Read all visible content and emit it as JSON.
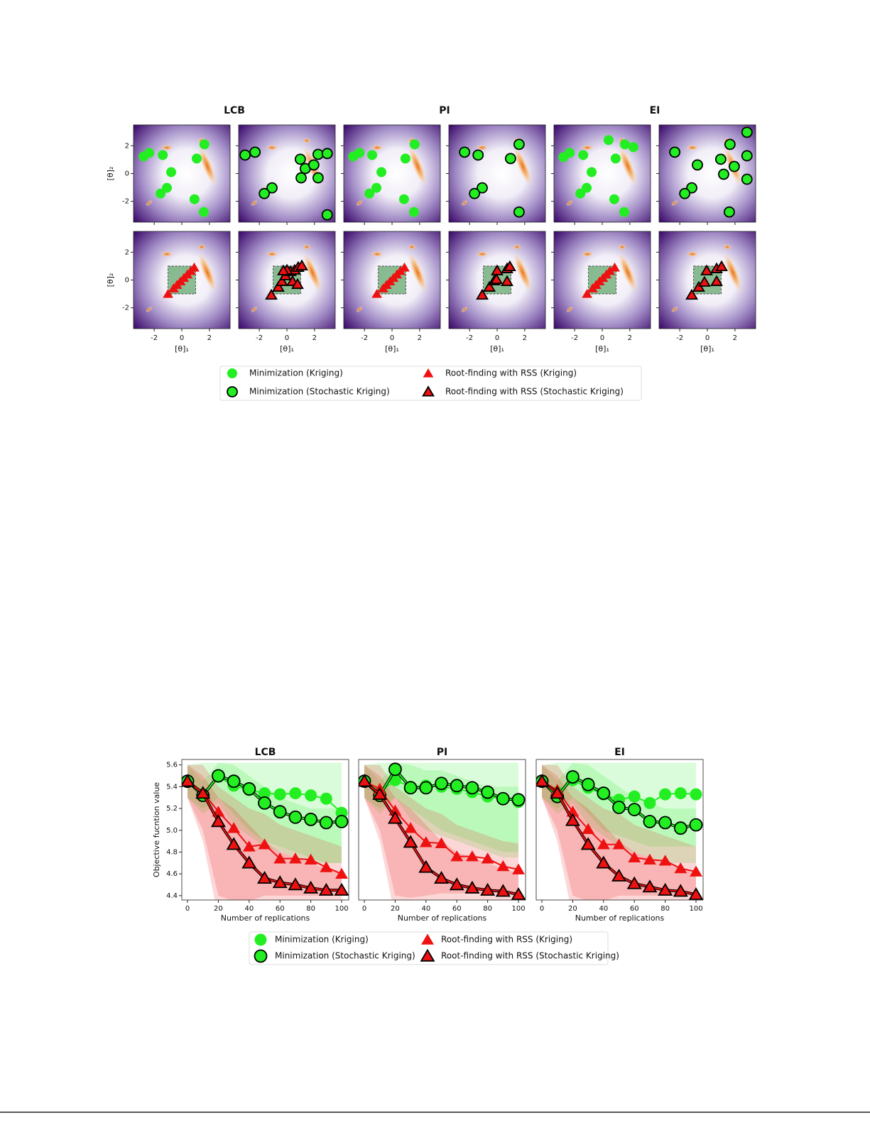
{
  "chart_data": [
    {
      "type": "scatter",
      "titles": [
        "LCB",
        "PI",
        "EI"
      ],
      "xlabel": "[θ]₁",
      "ylabel": "[θ]₂",
      "xlim": [
        -3.5,
        3.5
      ],
      "ylim": [
        -3.5,
        3.5
      ],
      "xticks": [
        -2,
        0,
        2
      ],
      "yticks": [
        -2,
        0,
        2
      ],
      "region": {
        "x": [
          -1,
          1
        ],
        "y": [
          -1,
          1
        ],
        "color": "#2e8b3a"
      },
      "legend": "lower center",
      "series": [
        {
          "name": "Minimization (Kriging)",
          "color": "#22ee22",
          "marker": "circle",
          "x": [
            [
              -2.77,
              -2.36,
              -1.38,
              -0.77,
              -1.08,
              -1.54,
              1.64,
              1.08,
              0.92,
              1.59
            ],
            [
              -2.82,
              -2.36,
              -1.44,
              -0.77,
              -1.13,
              -1.64,
              1.64,
              0.97,
              0.87,
              1.59
            ],
            [
              -2.82,
              -2.36,
              -1.38,
              -0.77,
              -1.13,
              -1.59,
              0.46,
              1.64,
              2.26,
              0.97,
              0.87,
              1.59
            ]
          ],
          "y": [
            [
              1.23,
              1.49,
              1.33,
              0.1,
              -1.03,
              -1.44,
              2.1,
              1.08,
              -1.85,
              -2.77
            ],
            [
              1.23,
              1.49,
              1.33,
              0.1,
              -1.03,
              -1.44,
              2.1,
              1.08,
              -1.85,
              -2.77
            ],
            [
              1.18,
              1.49,
              1.33,
              0.1,
              -1.03,
              -1.44,
              2.41,
              2.1,
              1.9,
              1.08,
              -1.85,
              -2.77
            ]
          ]
        },
        {
          "name": "Minimization (Stochastic Kriging)",
          "color": "#22ee22",
          "edgecolor": "#000000",
          "marker": "circle",
          "x": [
            [
              -3.03,
              -2.31,
              0.97,
              1.33,
              1.95,
              2.26,
              2.92,
              1.03,
              2.26,
              -1.08,
              -1.64,
              2.92
            ],
            [
              -2.36,
              -1.38,
              0.97,
              1.59,
              -1.08,
              -1.64,
              1.59
            ],
            [
              -2.36,
              -0.72,
              0.97,
              1.64,
              1.95,
              1.18,
              2.87,
              2.87,
              2.87,
              -1.13,
              -1.64,
              1.59
            ]
          ],
          "y": [
            [
              1.33,
              1.54,
              1.03,
              0.36,
              0.62,
              1.38,
              1.44,
              -0.31,
              -0.31,
              -1.03,
              -1.44,
              -2.97
            ],
            [
              1.54,
              1.33,
              1.08,
              2.1,
              -1.03,
              -1.44,
              -2.77
            ],
            [
              1.54,
              0.62,
              1.03,
              2.1,
              0.51,
              -0.05,
              2.97,
              1.28,
              -0.41,
              -1.03,
              -1.44,
              -2.77
            ]
          ]
        },
        {
          "name": "Root-finding with RSS (Kriging)",
          "color": "#ee1111",
          "marker": "triangle",
          "x": [
            [
              -1.0,
              -0.6,
              -0.35,
              -0.1,
              0.15,
              0.4,
              0.65,
              0.9
            ],
            [
              -1.1,
              -0.65,
              -0.4,
              -0.15,
              0.1,
              0.35,
              0.6,
              0.9
            ],
            [
              -1.1,
              -0.7,
              -0.45,
              -0.2,
              0.05,
              0.3,
              0.55,
              0.9
            ]
          ],
          "y": [
            [
              -1.0,
              -0.6,
              -0.35,
              -0.1,
              0.15,
              0.4,
              0.65,
              0.9
            ],
            [
              -1.0,
              -0.6,
              -0.35,
              -0.1,
              0.15,
              0.4,
              0.65,
              0.9
            ],
            [
              -1.0,
              -0.6,
              -0.35,
              -0.1,
              0.15,
              0.4,
              0.65,
              0.9
            ]
          ]
        },
        {
          "name": "Root-finding with RSS (Stochastic Kriging)",
          "color": "#ee1111",
          "edgecolor": "#000000",
          "marker": "triangle",
          "x": [
            [
              -1.13,
              -0.62,
              -0.36,
              -0.1,
              0.26,
              0.56,
              0.82,
              1.08,
              0.41,
              0.77,
              0,
              -0.26
            ],
            [
              -1.08,
              -0.56,
              -0.21,
              0,
              0.72,
              0.92,
              -0.05,
              0.72
            ],
            [
              -1.13,
              -0.62,
              -0.21,
              -0.05,
              0.67,
              1.03,
              0.67
            ]
          ],
          "y": [
            [
              -1.08,
              -0.51,
              -0.1,
              0.31,
              0.62,
              0.72,
              0.92,
              1.03,
              -0.1,
              -0.31,
              0.72,
              0.67
            ],
            [
              -1.08,
              -0.51,
              -0.05,
              0.67,
              0.82,
              0.97,
              0.05,
              -0.1
            ],
            [
              -1.08,
              -0.51,
              -0.15,
              0.67,
              0.82,
              0.97,
              -0.1
            ]
          ]
        }
      ]
    },
    {
      "type": "line",
      "title": "LCB",
      "xlabel": "Number of replications",
      "ylabel": "Objective fucntion value",
      "x": [
        0,
        10,
        20,
        30,
        40,
        50,
        60,
        70,
        80,
        90,
        100
      ],
      "xlim": [
        -3.7,
        104.6
      ],
      "ylim": [
        4.36,
        5.65
      ],
      "xticks": [
        0,
        20,
        40,
        60,
        80,
        100
      ],
      "yticks": [
        4.4,
        4.6,
        4.8,
        {
          "value": 5,
          "label": "5.0"
        },
        5.2,
        5.4,
        5.6
      ],
      "legend": "lower center",
      "series": [
        {
          "name": "Minimization (Kriging)",
          "color": "#22ee22",
          "marker": "circle",
          "values": [
            5.45,
            5.33,
            5.49,
            5.41,
            5.37,
            5.34,
            5.33,
            5.34,
            5.32,
            5.29,
            5.16
          ],
          "lower": [
            5.3,
            5.2,
            5.3,
            5.15,
            5.0,
            4.9,
            4.85,
            4.8,
            4.75,
            4.7,
            4.7
          ],
          "upper": [
            5.6,
            5.62,
            5.62,
            5.62,
            5.62,
            5.62,
            5.62,
            5.62,
            5.62,
            5.62,
            5.62
          ]
        },
        {
          "name": "Minimization (Stochastic Kriging)",
          "color": "#22ee22",
          "edgecolor": "#000000",
          "marker": "circle",
          "values": [
            5.45,
            5.32,
            5.5,
            5.45,
            5.38,
            5.25,
            5.17,
            5.12,
            5.1,
            5.07,
            5.08
          ],
          "lower": [
            5.3,
            5.15,
            5.25,
            5.05,
            4.95,
            4.85,
            4.8,
            4.75,
            4.7,
            4.7,
            4.7
          ],
          "upper": [
            5.6,
            5.45,
            5.62,
            5.6,
            5.5,
            5.4,
            5.3,
            5.25,
            5.2,
            5.2,
            5.2
          ]
        },
        {
          "name": "Root-finding with RSS (Kriging)",
          "color": "#ee1111",
          "marker": "triangle",
          "values": [
            5.45,
            5.35,
            5.17,
            5.02,
            4.85,
            4.87,
            4.74,
            4.74,
            4.73,
            4.66,
            4.6
          ],
          "lower": [
            5.3,
            5.0,
            4.4,
            4.35,
            4.35,
            4.4,
            4.4,
            4.4,
            4.4,
            4.4,
            4.4
          ],
          "upper": [
            5.6,
            5.6,
            5.4,
            5.3,
            5.2,
            5.15,
            5.05,
            5.0,
            4.95,
            4.9,
            4.85
          ]
        },
        {
          "name": "Root-finding with RSS (Stochastic Kriging)",
          "color": "#ee1111",
          "edgecolor": "#000000",
          "marker": "triangle",
          "values": [
            5.45,
            5.34,
            5.08,
            4.87,
            4.7,
            4.56,
            4.52,
            4.5,
            4.47,
            4.45,
            4.45
          ],
          "lower": [
            5.3,
            4.9,
            4.2,
            4.2,
            4.3,
            4.35,
            4.35,
            4.35,
            4.35,
            4.35,
            4.35
          ],
          "upper": [
            5.6,
            5.5,
            5.3,
            5.2,
            5.05,
            4.9,
            4.8,
            4.75,
            4.7,
            4.65,
            4.6
          ]
        }
      ]
    },
    {
      "type": "line",
      "title": "PI",
      "xlabel": "Number of replications",
      "x": [
        0,
        10,
        20,
        30,
        40,
        50,
        60,
        70,
        80,
        90,
        100
      ],
      "xlim": [
        -3.7,
        104.6
      ],
      "ylim": [
        4.36,
        5.65
      ],
      "xticks": [
        0,
        20,
        40,
        60,
        80,
        100
      ],
      "series": [
        {
          "name": "Minimization (Kriging)",
          "color": "#22ee22",
          "marker": "circle",
          "values": [
            5.45,
            5.35,
            5.46,
            5.4,
            5.41,
            5.4,
            5.38,
            5.35,
            5.31,
            5.29,
            5.26
          ],
          "lower": [
            5.3,
            5.2,
            5.3,
            5.2,
            5.1,
            5.0,
            4.95,
            4.9,
            4.85,
            4.8,
            4.8
          ],
          "upper": [
            5.6,
            5.62,
            5.62,
            5.62,
            5.62,
            5.62,
            5.62,
            5.62,
            5.62,
            5.62,
            5.62
          ]
        },
        {
          "name": "Minimization (Stochastic Kriging)",
          "color": "#22ee22",
          "edgecolor": "#000000",
          "marker": "circle",
          "values": [
            5.45,
            5.32,
            5.56,
            5.39,
            5.39,
            5.43,
            5.41,
            5.39,
            5.35,
            5.29,
            5.28
          ],
          "lower": [
            5.3,
            5.15,
            5.3,
            5.1,
            5.0,
            4.95,
            4.9,
            4.85,
            4.8,
            4.75,
            4.75
          ],
          "upper": [
            5.6,
            5.45,
            5.62,
            5.6,
            5.55,
            5.55,
            5.5,
            5.45,
            5.4,
            5.4,
            5.4
          ]
        },
        {
          "name": "Root-finding with RSS (Kriging)",
          "color": "#ee1111",
          "marker": "triangle",
          "values": [
            5.45,
            5.38,
            5.18,
            5.02,
            4.89,
            4.88,
            4.76,
            4.76,
            4.74,
            4.67,
            4.64
          ],
          "lower": [
            5.3,
            5.0,
            4.4,
            4.38,
            4.4,
            4.42,
            4.42,
            4.42,
            4.42,
            4.42,
            4.42
          ],
          "upper": [
            5.6,
            5.6,
            5.4,
            5.3,
            5.2,
            5.15,
            5.05,
            5.0,
            4.95,
            4.9,
            4.88
          ]
        },
        {
          "name": "Root-finding with RSS (Stochastic Kriging)",
          "color": "#ee1111",
          "edgecolor": "#000000",
          "marker": "triangle",
          "values": [
            5.45,
            5.33,
            5.11,
            4.89,
            4.66,
            4.56,
            4.5,
            4.47,
            4.45,
            4.44,
            4.41
          ],
          "lower": [
            5.3,
            4.9,
            4.2,
            4.2,
            4.3,
            4.35,
            4.35,
            4.35,
            4.35,
            4.35,
            4.35
          ],
          "upper": [
            5.6,
            5.5,
            5.3,
            5.2,
            5.05,
            4.9,
            4.8,
            4.75,
            4.7,
            4.65,
            4.6
          ]
        }
      ]
    },
    {
      "type": "line",
      "title": "EI",
      "xlabel": "Number of replications",
      "x": [
        0,
        10,
        20,
        30,
        40,
        50,
        60,
        70,
        80,
        90,
        100
      ],
      "xlim": [
        -3.7,
        104.6
      ],
      "ylim": [
        4.36,
        5.65
      ],
      "xticks": [
        0,
        20,
        40,
        60,
        80,
        100
      ],
      "series": [
        {
          "name": "Minimization (Kriging)",
          "color": "#22ee22",
          "marker": "circle",
          "values": [
            5.45,
            5.35,
            5.46,
            5.39,
            5.33,
            5.28,
            5.31,
            5.25,
            5.33,
            5.34,
            5.33
          ],
          "lower": [
            5.3,
            5.2,
            5.3,
            5.15,
            5.0,
            4.95,
            4.9,
            4.85,
            4.85,
            4.85,
            4.85
          ],
          "upper": [
            5.6,
            5.62,
            5.62,
            5.62,
            5.62,
            5.62,
            5.62,
            5.62,
            5.62,
            5.62,
            5.62
          ]
        },
        {
          "name": "Minimization (Stochastic Kriging)",
          "color": "#22ee22",
          "edgecolor": "#000000",
          "marker": "circle",
          "values": [
            5.45,
            5.31,
            5.49,
            5.42,
            5.34,
            5.21,
            5.19,
            5.08,
            5.07,
            5.02,
            5.05
          ],
          "lower": [
            5.3,
            5.15,
            5.25,
            5.05,
            4.95,
            4.85,
            4.8,
            4.75,
            4.7,
            4.7,
            4.7
          ],
          "upper": [
            5.6,
            5.45,
            5.62,
            5.6,
            5.5,
            5.4,
            5.3,
            5.25,
            5.2,
            5.2,
            5.2
          ]
        },
        {
          "name": "Root-finding with RSS (Kriging)",
          "color": "#ee1111",
          "marker": "triangle",
          "values": [
            5.45,
            5.37,
            5.17,
            5.01,
            4.87,
            4.87,
            4.75,
            4.73,
            4.72,
            4.65,
            4.62
          ],
          "lower": [
            5.3,
            5.0,
            4.4,
            4.35,
            4.35,
            4.4,
            4.4,
            4.4,
            4.4,
            4.4,
            4.4
          ],
          "upper": [
            5.6,
            5.6,
            5.4,
            5.3,
            5.2,
            5.15,
            5.05,
            5.0,
            4.95,
            4.9,
            4.85
          ]
        },
        {
          "name": "Root-finding with RSS (Stochastic Kriging)",
          "color": "#ee1111",
          "edgecolor": "#000000",
          "marker": "triangle",
          "values": [
            5.45,
            5.34,
            5.09,
            4.87,
            4.7,
            4.58,
            4.51,
            4.48,
            4.45,
            4.44,
            4.41
          ],
          "lower": [
            5.3,
            4.9,
            4.2,
            4.2,
            4.3,
            4.35,
            4.35,
            4.35,
            4.35,
            4.35,
            4.35
          ],
          "upper": [
            5.6,
            5.5,
            5.3,
            5.2,
            5.05,
            4.9,
            4.8,
            4.75,
            4.7,
            4.65,
            4.6
          ]
        }
      ]
    }
  ]
}
